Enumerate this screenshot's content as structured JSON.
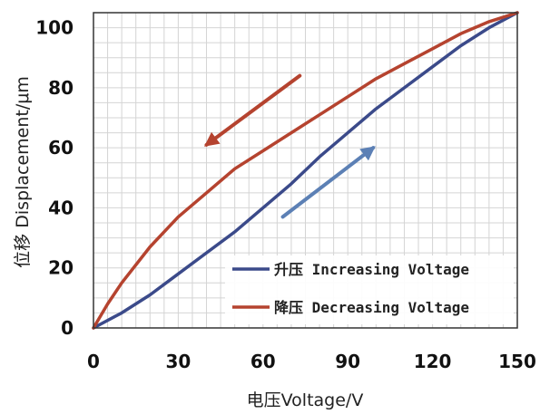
{
  "chart_data": {
    "type": "line",
    "xlabel": "电压Voltage/V",
    "ylabel": "位移 Displacement/μm",
    "xlim": [
      0,
      150
    ],
    "ylim": [
      0,
      105
    ],
    "x_ticks": [
      0,
      30,
      60,
      90,
      120,
      150
    ],
    "y_ticks": [
      0,
      20,
      40,
      60,
      80,
      100
    ],
    "grid": true,
    "legend_position": "bottom-right",
    "series": [
      {
        "name": "升压 Increasing Voltage",
        "color": "#3b4a8a",
        "points": [
          [
            0,
            0
          ],
          [
            10,
            5
          ],
          [
            20,
            11
          ],
          [
            30,
            18
          ],
          [
            40,
            25
          ],
          [
            50,
            32
          ],
          [
            60,
            40
          ],
          [
            70,
            48
          ],
          [
            80,
            57
          ],
          [
            90,
            65
          ],
          [
            100,
            73
          ],
          [
            110,
            80
          ],
          [
            120,
            87
          ],
          [
            130,
            94
          ],
          [
            140,
            100
          ],
          [
            150,
            105
          ]
        ]
      },
      {
        "name": "降压 Decreasing Voltage",
        "color": "#b5432f",
        "points": [
          [
            0,
            0
          ],
          [
            5,
            8
          ],
          [
            10,
            15
          ],
          [
            20,
            27
          ],
          [
            30,
            37
          ],
          [
            40,
            45
          ],
          [
            50,
            53
          ],
          [
            60,
            59
          ],
          [
            70,
            65
          ],
          [
            80,
            71
          ],
          [
            90,
            77
          ],
          [
            100,
            83
          ],
          [
            110,
            88
          ],
          [
            120,
            93
          ],
          [
            130,
            98
          ],
          [
            140,
            102
          ],
          [
            150,
            105
          ]
        ]
      }
    ],
    "arrows": [
      {
        "direction": "decreasing",
        "color": "#b5432f",
        "from": [
          73,
          84
        ],
        "to": [
          40,
          61
        ]
      },
      {
        "direction": "increasing",
        "color": "#5c80b5",
        "from": [
          67,
          37
        ],
        "to": [
          99,
          60
        ]
      }
    ]
  }
}
